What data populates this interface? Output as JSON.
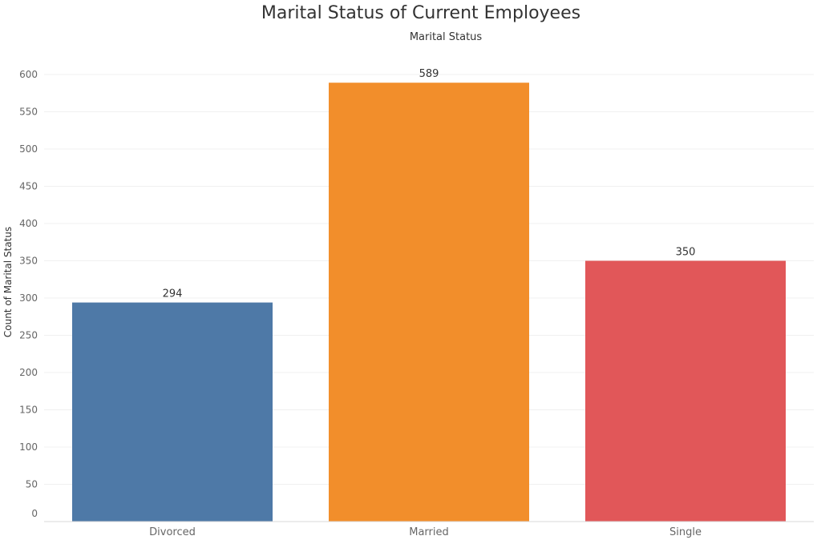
{
  "chart_data": {
    "type": "bar",
    "title": "Marital Status of Current Employees",
    "x_header": "Marital Status",
    "ylabel": "Count of Marital Status",
    "categories": [
      "Divorced",
      "Married",
      "Single"
    ],
    "values": [
      294,
      589,
      350
    ],
    "colors": [
      "#4e79a7",
      "#f28e2b",
      "#e15759"
    ],
    "ylim": [
      0,
      600
    ],
    "yticks": [
      0,
      50,
      100,
      150,
      200,
      250,
      300,
      350,
      400,
      450,
      500,
      550,
      600
    ],
    "grid": true,
    "legend": "none"
  }
}
